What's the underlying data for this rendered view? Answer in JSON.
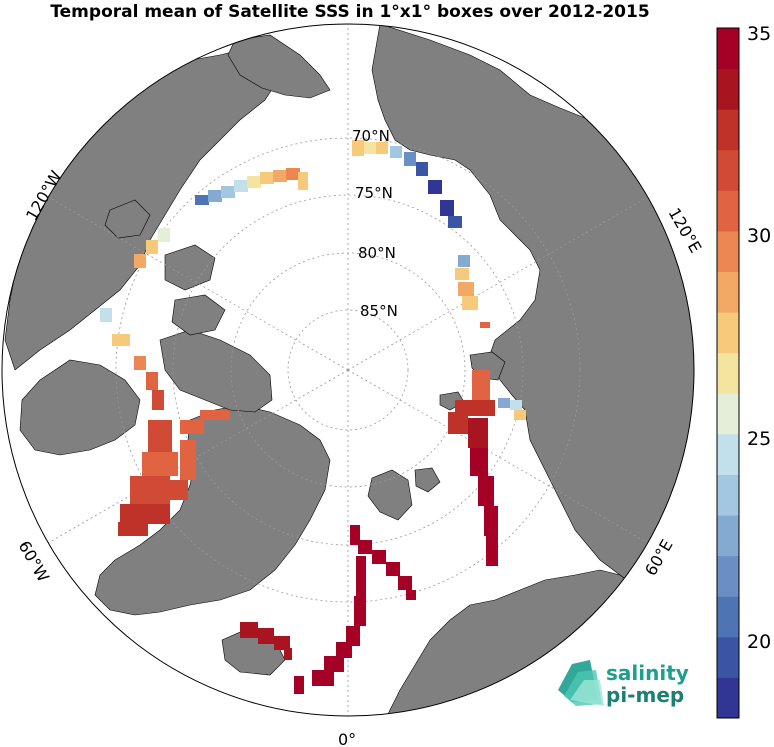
{
  "title": "Temporal mean of Satellite SSS in 1°x1° boxes over 2012-2015",
  "map": {
    "projection": "north-polar-stereographic",
    "land_color": "#808080",
    "ocean_color": "#ffffff",
    "lat_labels": [
      "70°N",
      "75°N",
      "80°N",
      "85°N"
    ],
    "lon_labels": {
      "w120": "120°W",
      "e120": "120°E",
      "w60": "60°W",
      "e60": "60°E",
      "zero": "0°"
    }
  },
  "colorbar": {
    "min": 18,
    "max": 35,
    "tick_labels": [
      "35",
      "30",
      "25",
      "20"
    ],
    "colors": [
      "#313695",
      "#3a55a4",
      "#4e74b4",
      "#6a8fc4",
      "#84aad2",
      "#a3c7e0",
      "#c2dfec",
      "#e4eed8",
      "#f5e3a0",
      "#f6c97b",
      "#f3a966",
      "#ec8653",
      "#e06442",
      "#d04a35",
      "#bf3229",
      "#a8141f",
      "#a50026"
    ]
  },
  "logo": {
    "line1": "salinity",
    "line2": "pi-mep",
    "color": "#1c9f8f"
  }
}
